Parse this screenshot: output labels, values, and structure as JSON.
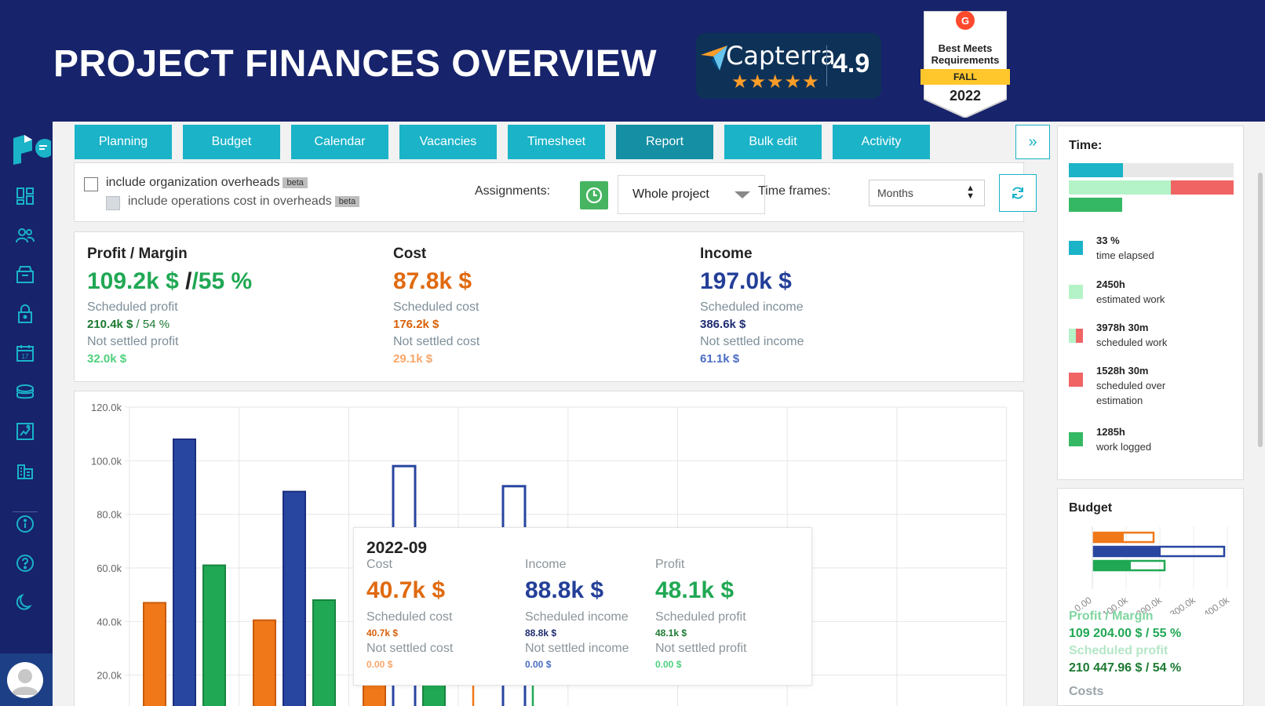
{
  "banner": {
    "title": "PROJECT FINANCES OVERVIEW",
    "capterra_name": "Capterra",
    "capterra_rating": "4.9",
    "capterra_stars": "★★★★★",
    "g2_line1": "Best Meets",
    "g2_line2": "Requirements",
    "g2_season": "FALL",
    "g2_year": "2022"
  },
  "sidebar": {
    "icons": [
      "logo-icon",
      "dashboard-icon",
      "people-icon",
      "inbox-icon",
      "lock-icon",
      "calendar-icon",
      "coins-icon",
      "report-icon",
      "buildings-icon",
      "info-icon",
      "help-icon",
      "moon-icon",
      "avatar"
    ]
  },
  "tabs": [
    "Planning",
    "Budget",
    "Calendar",
    "Vacancies",
    "Timesheet",
    "Report",
    "Bulk edit",
    "Activity"
  ],
  "active_tab": "Report",
  "tab_more": "»",
  "filters": {
    "include_org_overheads": "include organization overheads",
    "include_ops_cost": "include operations cost in overheads",
    "beta": "beta",
    "assignments_label": "Assignments:",
    "assignments_value": "Whole project",
    "time_frames_label": "Time frames:",
    "time_frames_value": "Months"
  },
  "kpis": {
    "profit": {
      "title": "Profit / Margin",
      "value": "109.2k $",
      "margin": "/55 %",
      "scheduled_label": "Scheduled profit",
      "scheduled_value": "210.4k $",
      "scheduled_margin": " / 54 %",
      "not_settled_label": "Not settled profit",
      "not_settled_value": "32.0k $"
    },
    "cost": {
      "title": "Cost",
      "value": "87.8k $",
      "scheduled_label": "Scheduled cost",
      "scheduled_value": "176.2k $",
      "not_settled_label": "Not settled cost",
      "not_settled_value": "29.1k $"
    },
    "income": {
      "title": "Income",
      "value": "197.0k $",
      "scheduled_label": "Scheduled income",
      "scheduled_value": "386.6k $",
      "not_settled_label": "Not settled income",
      "not_settled_value": "61.1k $"
    }
  },
  "colors": {
    "cost": "#f07818",
    "income": "#2846a0",
    "profit": "#20a854",
    "teal": "#1ab3c8",
    "navy": "#17236b"
  },
  "chart_data": {
    "type": "bar",
    "ylim": [
      0,
      120000
    ],
    "y_ticks": [
      "20.0k",
      "40.0k",
      "60.0k",
      "80.0k",
      "100.0k",
      "120.0k"
    ],
    "series": [
      {
        "name": "Cost",
        "values": [
          47000,
          40500,
          40700
        ]
      },
      {
        "name": "Income",
        "values": [
          108000,
          88500,
          88800
        ]
      },
      {
        "name": "Profit",
        "values": [
          61000,
          48000,
          48100
        ]
      }
    ],
    "outline_series": [
      {
        "name": "Scheduled income",
        "values": [
          null,
          null,
          98000,
          90500
        ]
      }
    ]
  },
  "tooltip": {
    "date": "2022-09",
    "cost": {
      "label": "Cost",
      "value": "40.7k $",
      "scheduled_label": "Scheduled cost",
      "scheduled_value": "40.7k $",
      "not_settled_label": "Not settled cost",
      "not_settled_value": "0.00 $"
    },
    "income": {
      "label": "Income",
      "value": "88.8k $",
      "scheduled_label": "Scheduled income",
      "scheduled_value": "88.8k $",
      "not_settled_label": "Not settled income",
      "not_settled_value": "0.00 $"
    },
    "profit": {
      "label": "Profit",
      "value": "48.1k $",
      "scheduled_label": "Scheduled profit",
      "scheduled_value": "48.1k $",
      "not_settled_label": "Not settled profit",
      "not_settled_value": "0.00 $"
    }
  },
  "time_panel": {
    "title": "Time:",
    "elapsed_fraction": 0.33,
    "legend": [
      {
        "value": "33 %",
        "label": "time elapsed",
        "color": "#1ab3c8"
      },
      {
        "value": "2450h",
        "label": "estimated work",
        "color": "#b4f3c8"
      },
      {
        "value": "3978h 30m",
        "label": "scheduled work",
        "color": "#f06464"
      },
      {
        "value": "1528h 30m",
        "label": "scheduled over",
        "label2": "estimation",
        "color": "#f06464"
      },
      {
        "value": "1285h",
        "label": "work logged",
        "color": "#35b864"
      }
    ]
  },
  "budget_panel": {
    "title": "Budget",
    "x_ticks": [
      "0.00",
      "100.0k",
      "200.0k",
      "300.0k",
      "400.0k"
    ],
    "profit_margin_label": "Profit / Margin",
    "profit_margin_value": "109 204.00 $ / 55 %",
    "scheduled_profit_label": "Scheduled profit",
    "scheduled_profit_value": "210 447.96 $ / 54 %",
    "costs_label": "Costs"
  }
}
